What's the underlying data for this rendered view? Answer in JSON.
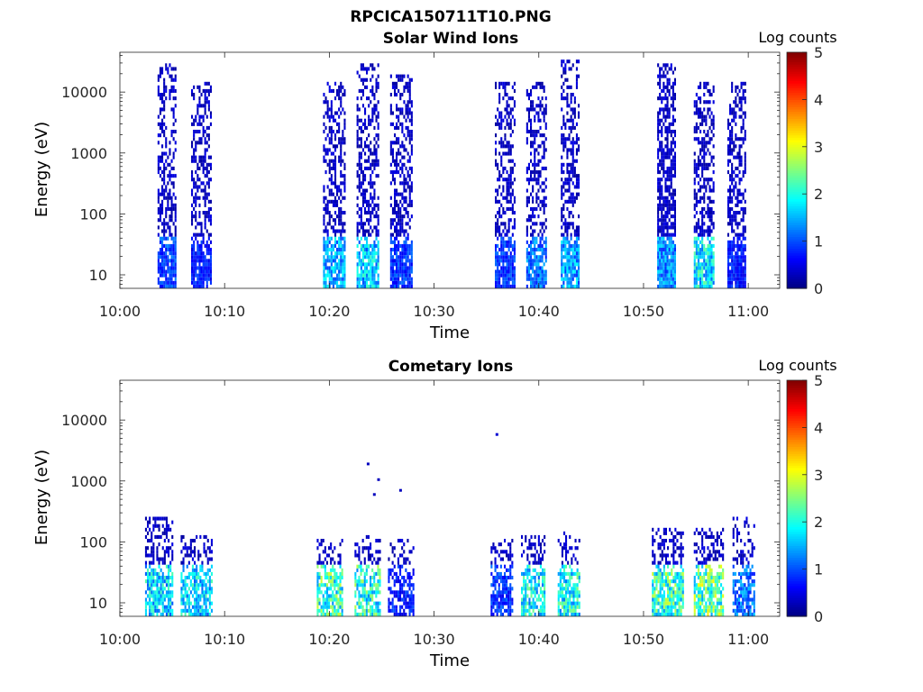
{
  "figure_title": "RPCICA150711T10.PNG",
  "colorbar_label": "Log counts",
  "colorbar_ticks": [
    "0",
    "1",
    "2",
    "3",
    "4",
    "5"
  ],
  "chart_data": [
    {
      "type": "heatmap",
      "title": "Solar Wind Ions",
      "xlabel": "Time",
      "ylabel": "Energy (eV)",
      "x_tick_labels": [
        "10:00",
        "10:10",
        "10:20",
        "10:30",
        "10:40",
        "10:50",
        "11:00"
      ],
      "y_tick_labels": [
        "10",
        "100",
        "1000",
        "10000"
      ],
      "y_scale": "log",
      "ylim": [
        6,
        45000
      ],
      "xlim_minutes": [
        0,
        63
      ],
      "clim": [
        0,
        5
      ],
      "bursts": [
        {
          "t0": 3.6,
          "t1": 5.3,
          "emax": 28000,
          "low_peak": 1.3,
          "dense": 0.55
        },
        {
          "t0": 6.8,
          "t1": 8.6,
          "emax": 15000,
          "low_peak": 1.0,
          "dense": 0.55
        },
        {
          "t0": 19.4,
          "t1": 21.4,
          "emax": 15000,
          "low_peak": 2.0,
          "dense": 0.55
        },
        {
          "t0": 22.6,
          "t1": 24.6,
          "emax": 30000,
          "low_peak": 2.2,
          "dense": 0.6
        },
        {
          "t0": 25.8,
          "t1": 27.8,
          "emax": 20000,
          "low_peak": 1.2,
          "dense": 0.6
        },
        {
          "t0": 35.8,
          "t1": 37.6,
          "emax": 15000,
          "low_peak": 1.2,
          "dense": 0.55
        },
        {
          "t0": 38.8,
          "t1": 40.6,
          "emax": 15000,
          "low_peak": 1.6,
          "dense": 0.55
        },
        {
          "t0": 42.1,
          "t1": 43.9,
          "emax": 35000,
          "low_peak": 1.9,
          "dense": 0.55
        },
        {
          "t0": 51.3,
          "t1": 53.0,
          "emax": 28000,
          "low_peak": 1.8,
          "dense": 0.85
        },
        {
          "t0": 54.8,
          "t1": 56.6,
          "emax": 15000,
          "low_peak": 2.4,
          "dense": 0.6
        },
        {
          "t0": 58.0,
          "t1": 59.8,
          "emax": 15000,
          "low_peak": 1.0,
          "dense": 0.6
        }
      ]
    },
    {
      "type": "heatmap",
      "title": "Cometary Ions",
      "xlabel": "Time",
      "ylabel": "Energy (eV)",
      "x_tick_labels": [
        "10:00",
        "10:10",
        "10:20",
        "10:30",
        "10:40",
        "10:50",
        "11:00"
      ],
      "y_tick_labels": [
        "10",
        "100",
        "1000",
        "10000"
      ],
      "y_scale": "log",
      "ylim": [
        6,
        45000
      ],
      "xlim_minutes": [
        0,
        63
      ],
      "clim": [
        0,
        5
      ],
      "bursts": [
        {
          "t0": 2.4,
          "t1": 5.0,
          "emax": 270,
          "low_peak": 2.3,
          "dense": 0.55
        },
        {
          "t0": 5.8,
          "t1": 8.8,
          "emax": 130,
          "low_peak": 2.3,
          "dense": 0.45
        },
        {
          "t0": 18.8,
          "t1": 21.3,
          "emax": 120,
          "low_peak": 2.9,
          "dense": 0.5
        },
        {
          "t0": 22.4,
          "t1": 24.8,
          "emax": 130,
          "low_peak": 2.8,
          "dense": 0.5
        },
        {
          "t0": 25.6,
          "t1": 28.0,
          "emax": 120,
          "low_peak": 1.0,
          "dense": 0.4
        },
        {
          "t0": 35.4,
          "t1": 37.5,
          "emax": 120,
          "low_peak": 1.2,
          "dense": 0.45
        },
        {
          "t0": 38.3,
          "t1": 40.5,
          "emax": 130,
          "low_peak": 2.5,
          "dense": 0.45
        },
        {
          "t0": 41.8,
          "t1": 43.8,
          "emax": 140,
          "low_peak": 2.6,
          "dense": 0.45
        },
        {
          "t0": 50.8,
          "t1": 53.8,
          "emax": 180,
          "low_peak": 2.9,
          "dense": 0.6
        },
        {
          "t0": 54.8,
          "t1": 57.5,
          "emax": 180,
          "low_peak": 3.2,
          "dense": 0.55
        },
        {
          "t0": 58.5,
          "t1": 60.5,
          "emax": 250,
          "low_peak": 1.6,
          "dense": 0.45
        }
      ],
      "isolated_points": [
        {
          "t": 36.0,
          "e": 5800,
          "v": 0.4
        },
        {
          "t": 23.7,
          "e": 1900,
          "v": 0.3
        },
        {
          "t": 24.7,
          "e": 1050,
          "v": 0.3
        },
        {
          "t": 24.3,
          "e": 600,
          "v": 0.3
        },
        {
          "t": 26.8,
          "e": 700,
          "v": 0.3
        }
      ]
    }
  ]
}
